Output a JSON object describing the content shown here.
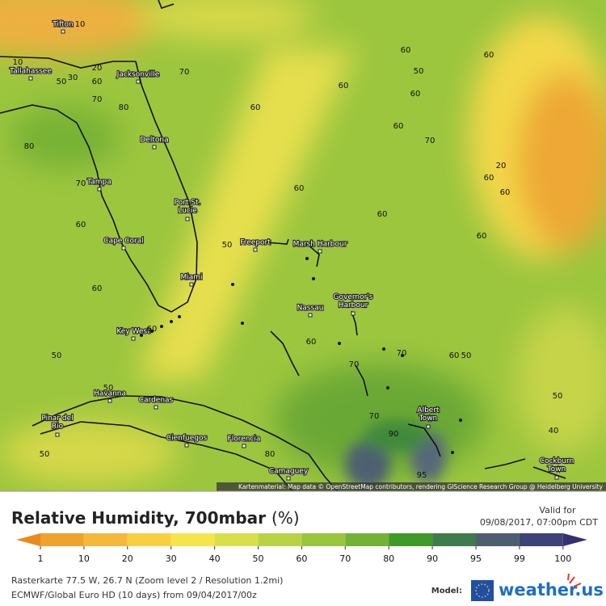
{
  "map": {
    "cities": [
      "Tifton",
      "Tallahassee",
      "Jacksonville",
      "Deltona",
      "Tampa",
      "Port St. Lucie",
      "Cape Coral",
      "Miami",
      "Key West",
      "Freeport",
      "Marsh Harbour",
      "Nassau",
      "Governor's Harbour",
      "Havanna",
      "Cardenas",
      "Pinar del Rio",
      "Cienfuegos",
      "Florencia",
      "Camaguey",
      "Albert Town",
      "Cockburn Town"
    ],
    "contour_labels": [
      "10",
      "10",
      "20",
      "30",
      "50",
      "60",
      "70",
      "70",
      "80",
      "80",
      "70",
      "60",
      "60",
      "50",
      "50",
      "60",
      "60",
      "60",
      "60",
      "50",
      "60",
      "60",
      "60",
      "70",
      "60",
      "60",
      "50",
      "20",
      "60",
      "60",
      "60",
      "60",
      "70",
      "70",
      "60",
      "50",
      "70",
      "90",
      "80",
      "95",
      "50",
      "40",
      "50"
    ],
    "attribution": "Kartenmaterial: Map data © OpenStreetMap contributors, rendering GIScience Research Group @ Heidelberg University"
  },
  "footer": {
    "title": "Relative Humidity, 700mbar",
    "unit": "(%)",
    "valid_label": "Valid for",
    "valid_time": "09/08/2017, 07:00pm CDT",
    "legend": {
      "ticks": [
        1,
        10,
        20,
        30,
        40,
        50,
        60,
        70,
        80,
        90,
        95,
        99,
        100
      ],
      "colors": [
        "#e98a1c",
        "#f0a22e",
        "#f4b93a",
        "#f7d042",
        "#f5e54a",
        "#d9df4a",
        "#b8d445",
        "#98c63d",
        "#72b335",
        "#3f9a2a",
        "#3f7b4c",
        "#4d5e70",
        "#3d4278",
        "#37306e"
      ]
    },
    "info": [
      "Rasterkarte 77.5 W, 26.7 N (Zoom level 2 / Resolution 1.2mi)",
      "ECMWF/Global Euro HD (10 days) from 09/04/2017/00z"
    ],
    "model_label": "Model:",
    "logo": "weather.us"
  }
}
